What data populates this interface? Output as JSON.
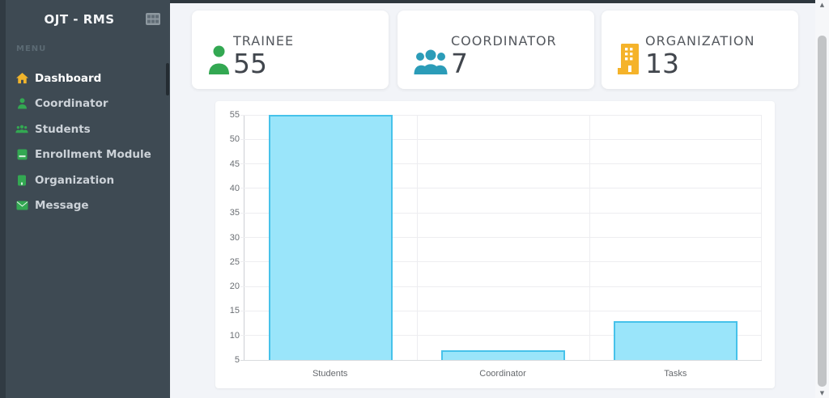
{
  "sidebar": {
    "title": "OJT - RMS",
    "header_icon": "grid-icon",
    "section_label": "MENU",
    "items": [
      {
        "label": "Dashboard",
        "icon": "home-icon",
        "active": true
      },
      {
        "label": "Coordinator",
        "icon": "user-icon",
        "active": false
      },
      {
        "label": "Students",
        "icon": "users-icon",
        "active": false
      },
      {
        "label": "Enrollment Module",
        "icon": "book-icon",
        "active": false
      },
      {
        "label": "Organization",
        "icon": "bookmark-icon",
        "active": false
      },
      {
        "label": "Message",
        "icon": "envelope-icon",
        "active": false
      }
    ]
  },
  "stats": [
    {
      "label": "TRAINEE",
      "value": "55",
      "icon": "person-icon",
      "color": "#33a852"
    },
    {
      "label": "COORDINATOR",
      "value": "7",
      "icon": "people-icon",
      "color": "#2b9cb8"
    },
    {
      "label": "ORGANIZATION",
      "value": "13",
      "icon": "building-icon",
      "color": "#f5b32a"
    }
  ],
  "chart_data": {
    "type": "bar",
    "categories": [
      "Students",
      "Coordinator",
      "Tasks"
    ],
    "values": [
      55,
      7,
      13
    ],
    "title": "",
    "xlabel": "",
    "ylabel": "",
    "ylim": [
      5,
      55
    ],
    "ytick_step": 5,
    "grid": true,
    "legend": false,
    "bar_fill": "#9ae5fa",
    "bar_border": "#46c2ea"
  },
  "colors": {
    "sidebar_bg": "#3e4a53",
    "sidebar_edge": "#313b43",
    "content_bg": "#f2f4f8",
    "accent_green": "#33a852",
    "accent_teal": "#2b9cb8",
    "accent_yellow": "#f5b32a",
    "active_item_icon": "#f0b42c"
  }
}
